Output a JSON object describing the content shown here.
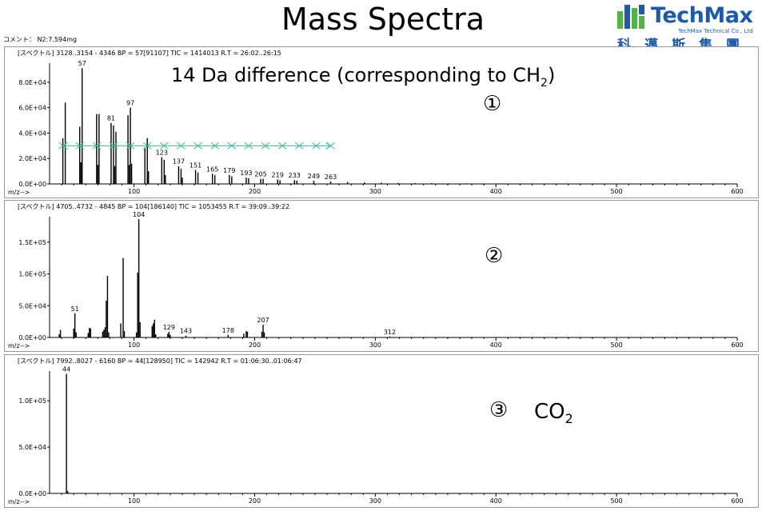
{
  "page": {
    "title": "Mass Spectra",
    "comment": "コメント： N2:7.594mg",
    "note_main": "14 Da difference (corresponding to CH",
    "note_sub": "2",
    "note_close": ")",
    "marker1": "①",
    "marker2": "②",
    "marker3": "③",
    "co2_text": "CO",
    "co2_sub": "2"
  },
  "logo": {
    "word": "TechMax",
    "tagline": "TechMax Technical Co., Ltd",
    "chinese": "科邁斯集團",
    "colors": {
      "blue": "#1d5ba8",
      "green": "#52b447"
    }
  },
  "colors": {
    "axis": "#000000",
    "frame": "#9a9a9a",
    "arrow": "#3cc3a0"
  },
  "chart_data": [
    {
      "type": "bar",
      "header": "[スペクトル]  3128..3154 - 4346  BP = 57[91107]  TIC = 1414013  R.T = 26:02..26:15",
      "xlabel": "m/z-->",
      "xlim": [
        30,
        600
      ],
      "ylim": [
        0,
        95000
      ],
      "xticks": [
        100,
        200,
        300,
        400,
        500,
        600
      ],
      "yticks": [
        0,
        20000,
        40000,
        60000,
        80000
      ],
      "ytick_labels": [
        "0.0E+00",
        "2.0E+04",
        "4.0E+04",
        "6.0E+04",
        "8.0E+04"
      ],
      "peaks": [
        [
          41,
          36000
        ],
        [
          43,
          64000
        ],
        [
          55,
          45000
        ],
        [
          56,
          17000
        ],
        [
          57,
          91107
        ],
        [
          69,
          55000
        ],
        [
          70,
          15000
        ],
        [
          71,
          55000
        ],
        [
          81,
          48000
        ],
        [
          83,
          46000
        ],
        [
          84,
          14000
        ],
        [
          85,
          41000
        ],
        [
          95,
          54000
        ],
        [
          96,
          15000
        ],
        [
          97,
          60000
        ],
        [
          98,
          16000
        ],
        [
          109,
          28000
        ],
        [
          111,
          36000
        ],
        [
          112,
          10000
        ],
        [
          123,
          21000
        ],
        [
          125,
          19000
        ],
        [
          126,
          7000
        ],
        [
          137,
          14000
        ],
        [
          139,
          12000
        ],
        [
          140,
          5000
        ],
        [
          151,
          11000
        ],
        [
          153,
          9000
        ],
        [
          165,
          8000
        ],
        [
          167,
          7000
        ],
        [
          179,
          7000
        ],
        [
          181,
          6000
        ],
        [
          193,
          5000
        ],
        [
          195,
          4500
        ],
        [
          205,
          4000
        ],
        [
          207,
          4000
        ],
        [
          219,
          3500
        ],
        [
          221,
          3000
        ],
        [
          233,
          3000
        ],
        [
          235,
          2500
        ],
        [
          249,
          2500
        ],
        [
          263,
          2000
        ],
        [
          277,
          1500
        ],
        [
          291,
          1200
        ],
        [
          305,
          1000
        ],
        [
          319,
          800
        ],
        [
          333,
          700
        ],
        [
          347,
          600
        ],
        [
          361,
          500
        ],
        [
          375,
          500
        ],
        [
          389,
          400
        ],
        [
          403,
          400
        ],
        [
          417,
          400
        ],
        [
          431,
          300
        ],
        [
          445,
          300
        ],
        [
          459,
          300
        ],
        [
          473,
          300
        ],
        [
          487,
          300
        ],
        [
          501,
          300
        ],
        [
          515,
          200
        ],
        [
          529,
          200
        ],
        [
          543,
          200
        ],
        [
          557,
          200
        ],
        [
          571,
          200
        ],
        [
          585,
          200
        ]
      ],
      "peak_labels": [
        [
          57,
          "57"
        ],
        [
          81,
          "81"
        ],
        [
          97,
          "97"
        ],
        [
          123,
          "123"
        ],
        [
          137,
          "137"
        ],
        [
          151,
          "151"
        ],
        [
          165,
          "165"
        ],
        [
          179,
          "179"
        ],
        [
          193,
          "193"
        ],
        [
          205,
          "205"
        ],
        [
          219,
          "219"
        ],
        [
          233,
          "233"
        ],
        [
          249,
          "249"
        ],
        [
          263,
          "263"
        ]
      ],
      "arrow_range": [
        41,
        263
      ],
      "arrow_y": 30000,
      "arrow_marks": [
        41,
        55,
        69,
        83,
        97,
        111,
        125,
        139,
        153,
        167,
        181,
        195,
        209,
        223,
        237,
        251,
        263
      ]
    },
    {
      "type": "bar",
      "header": "[スペクトル]  4705..4732 - 4845  BP = 104[186140]  TIC = 1053455  R.T = 39:09..39:22",
      "xlabel": "m/z-->",
      "xlim": [
        30,
        600
      ],
      "ylim": [
        0,
        190000
      ],
      "xticks": [
        100,
        200,
        300,
        400,
        500,
        600
      ],
      "yticks": [
        0,
        50000,
        100000,
        150000
      ],
      "ytick_labels": [
        "0.0E+00",
        "5.0E+04",
        "1.0E+05",
        "1.5E+05"
      ],
      "peaks": [
        [
          38,
          5000
        ],
        [
          39,
          12000
        ],
        [
          50,
          14000
        ],
        [
          51,
          38000
        ],
        [
          52,
          8000
        ],
        [
          62,
          7000
        ],
        [
          63,
          15000
        ],
        [
          64,
          14000
        ],
        [
          74,
          9000
        ],
        [
          75,
          12000
        ],
        [
          76,
          16000
        ],
        [
          77,
          58000
        ],
        [
          78,
          97000
        ],
        [
          79,
          8000
        ],
        [
          89,
          22000
        ],
        [
          91,
          125000
        ],
        [
          92,
          10000
        ],
        [
          102,
          8000
        ],
        [
          103,
          102000
        ],
        [
          104,
          186140
        ],
        [
          105,
          24000
        ],
        [
          115,
          18000
        ],
        [
          116,
          22000
        ],
        [
          117,
          28000
        ],
        [
          118,
          5000
        ],
        [
          128,
          6000
        ],
        [
          129,
          9000
        ],
        [
          130,
          4000
        ],
        [
          143,
          3000
        ],
        [
          178,
          4000
        ],
        [
          191,
          6000
        ],
        [
          193,
          10000
        ],
        [
          194,
          9000
        ],
        [
          206,
          9000
        ],
        [
          207,
          20000
        ],
        [
          208,
          8000
        ],
        [
          312,
          1500
        ]
      ],
      "peak_labels": [
        [
          51,
          "51"
        ],
        [
          104,
          "104"
        ],
        [
          129,
          "129"
        ],
        [
          143,
          "143"
        ],
        [
          178,
          "178"
        ],
        [
          207,
          "207"
        ],
        [
          312,
          "312"
        ]
      ]
    },
    {
      "type": "bar",
      "header": "[スペクトル]  7992..8027 - 6160  BP = 44[128950]  TIC = 142942  R.T = 01:06:30..01:06:47",
      "xlabel": "m/z-->",
      "xlim": [
        30,
        600
      ],
      "ylim": [
        0,
        132000
      ],
      "xticks": [
        100,
        200,
        300,
        400,
        500,
        600
      ],
      "yticks": [
        0,
        50000,
        100000
      ],
      "ytick_labels": [
        "0.0E+00",
        "5.0E+04",
        "1.0E+05"
      ],
      "peaks": [
        [
          44,
          128950
        ],
        [
          45,
          2500
        ]
      ],
      "peak_labels": [
        [
          44,
          "44"
        ]
      ]
    }
  ]
}
